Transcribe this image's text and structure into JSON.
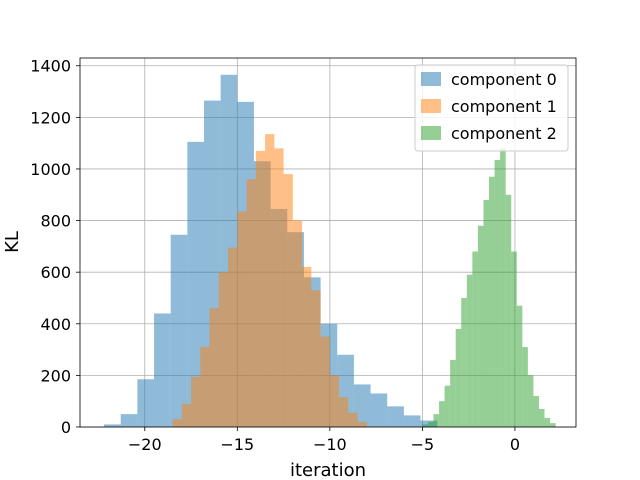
{
  "chart_data": {
    "type": "histogram",
    "title": "",
    "xlabel": "iteration",
    "ylabel": "KL",
    "xlim": [
      -23.5,
      3.3
    ],
    "ylim": [
      0,
      1430
    ],
    "xticks": [
      -20,
      -15,
      -10,
      -5,
      0
    ],
    "xtick_labels": [
      "−20",
      "−15",
      "−10",
      "−5",
      "0"
    ],
    "yticks": [
      0,
      200,
      400,
      600,
      800,
      1000,
      1200,
      1400
    ],
    "ytick_labels": [
      "0",
      "200",
      "400",
      "600",
      "800",
      "1000",
      "1200",
      "1400"
    ],
    "grid": true,
    "legend_position": "top-right",
    "series": [
      {
        "name": "component 0",
        "color": "#1f77b4",
        "bins": [
          [
            -22.2,
            -21.3,
            10
          ],
          [
            -21.3,
            -20.4,
            50
          ],
          [
            -20.4,
            -19.5,
            185
          ],
          [
            -19.5,
            -18.6,
            440
          ],
          [
            -18.6,
            -17.7,
            745
          ],
          [
            -17.7,
            -16.8,
            1105
          ],
          [
            -16.8,
            -15.9,
            1265
          ],
          [
            -15.9,
            -15.0,
            1365
          ],
          [
            -15.0,
            -14.1,
            1260
          ],
          [
            -14.1,
            -13.2,
            1030
          ],
          [
            -13.2,
            -12.3,
            845
          ],
          [
            -12.3,
            -11.4,
            755
          ],
          [
            -11.4,
            -10.5,
            580
          ],
          [
            -10.5,
            -9.6,
            400
          ],
          [
            -9.6,
            -8.7,
            280
          ],
          [
            -8.7,
            -7.8,
            165
          ],
          [
            -7.8,
            -6.9,
            130
          ],
          [
            -6.9,
            -6.0,
            80
          ],
          [
            -6.0,
            -5.1,
            45
          ],
          [
            -5.1,
            -4.2,
            25
          ]
        ]
      },
      {
        "name": "component 1",
        "color": "#ff7f0e",
        "bins": [
          [
            -18.5,
            -18.0,
            30
          ],
          [
            -18.0,
            -17.5,
            90
          ],
          [
            -17.5,
            -17.0,
            195
          ],
          [
            -17.0,
            -16.5,
            310
          ],
          [
            -16.5,
            -16.0,
            460
          ],
          [
            -16.0,
            -15.5,
            600
          ],
          [
            -15.5,
            -15.0,
            695
          ],
          [
            -15.0,
            -14.5,
            835
          ],
          [
            -14.5,
            -14.0,
            960
          ],
          [
            -14.0,
            -13.5,
            1070
          ],
          [
            -13.5,
            -13.0,
            1135
          ],
          [
            -13.0,
            -12.5,
            1080
          ],
          [
            -12.5,
            -12.0,
            980
          ],
          [
            -12.0,
            -11.5,
            800
          ],
          [
            -11.5,
            -11.0,
            620
          ],
          [
            -11.0,
            -10.5,
            530
          ],
          [
            -10.5,
            -10.0,
            350
          ],
          [
            -10.0,
            -9.5,
            200
          ],
          [
            -9.5,
            -9.0,
            115
          ],
          [
            -9.0,
            -8.5,
            55
          ],
          [
            -8.5,
            -8.0,
            20
          ]
        ]
      },
      {
        "name": "component 2",
        "color": "#2ca02c",
        "bins": [
          [
            -5.0,
            -4.7,
            10
          ],
          [
            -4.7,
            -4.4,
            20
          ],
          [
            -4.4,
            -4.1,
            50
          ],
          [
            -4.1,
            -3.8,
            100
          ],
          [
            -3.8,
            -3.5,
            160
          ],
          [
            -3.5,
            -3.2,
            260
          ],
          [
            -3.2,
            -2.9,
            380
          ],
          [
            -2.9,
            -2.6,
            500
          ],
          [
            -2.6,
            -2.3,
            590
          ],
          [
            -2.3,
            -2.0,
            680
          ],
          [
            -2.0,
            -1.7,
            780
          ],
          [
            -1.7,
            -1.4,
            880
          ],
          [
            -1.4,
            -1.1,
            970
          ],
          [
            -1.1,
            -0.8,
            1035
          ],
          [
            -0.8,
            -0.5,
            1080
          ],
          [
            -0.5,
            -0.2,
            900
          ],
          [
            -0.2,
            0.1,
            680
          ],
          [
            0.1,
            0.4,
            470
          ],
          [
            0.4,
            0.7,
            310
          ],
          [
            0.7,
            1.0,
            200
          ],
          [
            1.0,
            1.3,
            120
          ],
          [
            1.3,
            1.6,
            70
          ],
          [
            1.6,
            1.9,
            35
          ],
          [
            1.9,
            2.2,
            15
          ]
        ]
      }
    ]
  }
}
